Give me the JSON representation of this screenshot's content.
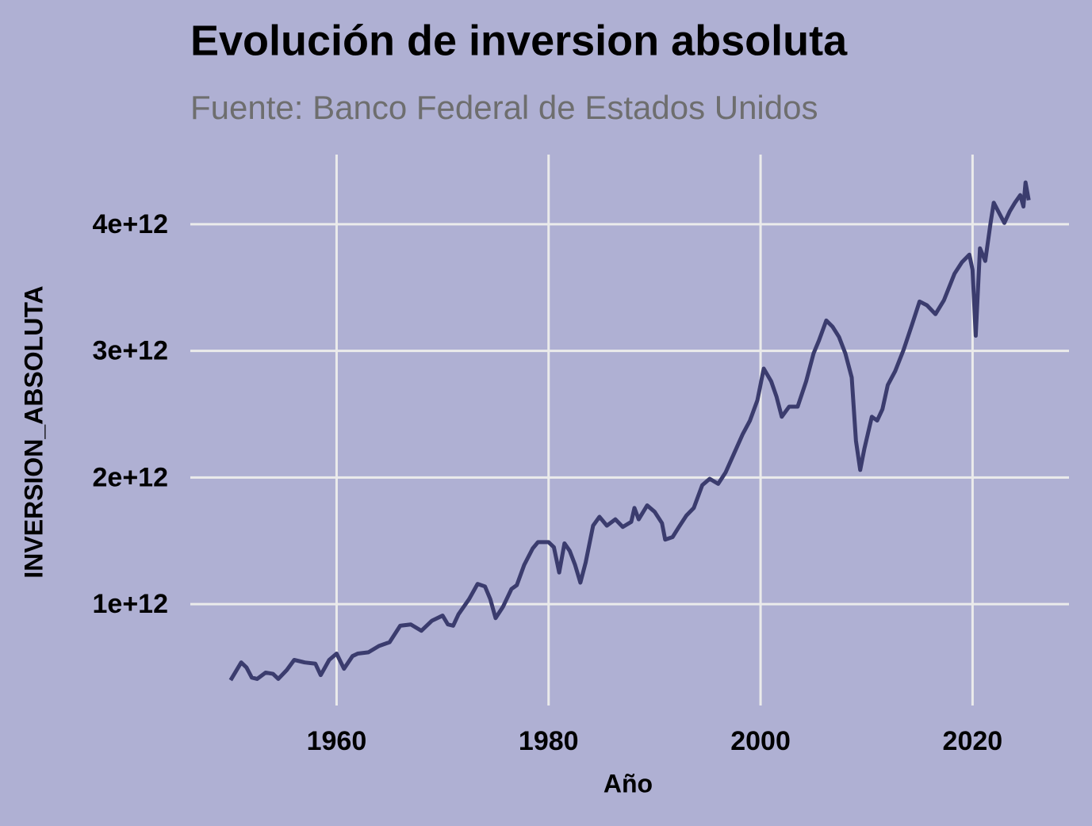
{
  "chart_data": {
    "type": "line",
    "title": "Evolución de inversion absoluta",
    "subtitle": "Fuente: Banco Federal de Estados Unidos",
    "x_label": "Año",
    "y_label": "INVERSION_ABSOLUTA",
    "color": "#3b3c6e",
    "grid": true,
    "xlim": [
      1946.2,
      2029.1
    ],
    "ylim": [
      200000000000.0,
      4550000000000.0
    ],
    "xticks": [
      1960,
      1980,
      2000,
      2020
    ],
    "yticks": [
      {
        "value": 1000000000000.0,
        "label": "1e+12"
      },
      {
        "value": 2000000000000.0,
        "label": "2e+12"
      },
      {
        "value": 3000000000000.0,
        "label": "3e+12"
      },
      {
        "value": 4000000000000.0,
        "label": "4e+12"
      }
    ],
    "x": [
      1950.0,
      1951.0,
      1951.5,
      1952.0,
      1952.5,
      1953.3,
      1954.0,
      1954.5,
      1955.3,
      1956.0,
      1957.0,
      1958.0,
      1958.5,
      1959.3,
      1960.0,
      1960.7,
      1961.5,
      1962.0,
      1963.0,
      1964.0,
      1965.0,
      1966.0,
      1967.0,
      1968.0,
      1969.0,
      1970.0,
      1970.5,
      1971.0,
      1971.5,
      1972.5,
      1973.3,
      1974.0,
      1974.5,
      1975.0,
      1975.7,
      1976.5,
      1977.0,
      1977.7,
      1978.5,
      1979.0,
      1980.0,
      1980.5,
      1981.0,
      1981.5,
      1982.0,
      1982.5,
      1983.0,
      1983.5,
      1984.2,
      1984.8,
      1985.5,
      1986.3,
      1987.0,
      1987.8,
      1988.1,
      1988.5,
      1989.3,
      1990.0,
      1990.7,
      1991.0,
      1991.7,
      1992.3,
      1993.0,
      1993.7,
      1994.5,
      1995.2,
      1996.0,
      1996.7,
      1997.5,
      1998.3,
      1999.0,
      1999.7,
      2000.3,
      2001.0,
      2001.5,
      2002.0,
      2002.7,
      2003.5,
      2004.3,
      2005.0,
      2005.5,
      2006.2,
      2006.8,
      2007.4,
      2008.0,
      2008.6,
      2009.0,
      2009.4,
      2009.8,
      2010.5,
      2011.0,
      2011.5,
      2012.0,
      2012.7,
      2013.5,
      2014.3,
      2015.0,
      2015.7,
      2016.5,
      2017.3,
      2018.3,
      2019.0,
      2019.7,
      2020.0,
      2020.3,
      2020.7,
      2021.2,
      2021.7,
      2022.0,
      2022.5,
      2023.0,
      2023.5,
      2024.0,
      2024.5,
      2024.8,
      2025.0,
      2025.3
    ],
    "values": [
      400000000000.0,
      540000000000.0,
      500000000000.0,
      420000000000.0,
      410000000000.0,
      460000000000.0,
      450000000000.0,
      410000000000.0,
      480000000000.0,
      560000000000.0,
      540000000000.0,
      530000000000.0,
      440000000000.0,
      560000000000.0,
      610000000000.0,
      490000000000.0,
      590000000000.0,
      610000000000.0,
      620000000000.0,
      670000000000.0,
      700000000000.0,
      830000000000.0,
      840000000000.0,
      790000000000.0,
      870000000000.0,
      910000000000.0,
      840000000000.0,
      830000000000.0,
      920000000000.0,
      1040000000000.0,
      1160000000000.0,
      1140000000000.0,
      1040000000000.0,
      890000000000.0,
      980000000000.0,
      1120000000000.0,
      1150000000000.0,
      1310000000000.0,
      1440000000000.0,
      1490000000000.0,
      1490000000000.0,
      1450000000000.0,
      1250000000000.0,
      1480000000000.0,
      1420000000000.0,
      1310000000000.0,
      1170000000000.0,
      1330000000000.0,
      1620000000000.0,
      1690000000000.0,
      1620000000000.0,
      1670000000000.0,
      1610000000000.0,
      1650000000000.0,
      1760000000000.0,
      1670000000000.0,
      1780000000000.0,
      1730000000000.0,
      1640000000000.0,
      1510000000000.0,
      1530000000000.0,
      1610000000000.0,
      1700000000000.0,
      1760000000000.0,
      1940000000000.0,
      1990000000000.0,
      1950000000000.0,
      2040000000000.0,
      2190000000000.0,
      2340000000000.0,
      2450000000000.0,
      2610000000000.0,
      2860000000000.0,
      2760000000000.0,
      2640000000000.0,
      2480000000000.0,
      2560000000000.0,
      2560000000000.0,
      2760000000000.0,
      2980000000000.0,
      3080000000000.0,
      3240000000000.0,
      3190000000000.0,
      3110000000000.0,
      2980000000000.0,
      2790000000000.0,
      2290000000000.0,
      2060000000000.0,
      2230000000000.0,
      2480000000000.0,
      2450000000000.0,
      2540000000000.0,
      2730000000000.0,
      2840000000000.0,
      3010000000000.0,
      3210000000000.0,
      3390000000000.0,
      3360000000000.0,
      3290000000000.0,
      3400000000000.0,
      3610000000000.0,
      3700000000000.0,
      3760000000000.0,
      3640000000000.0,
      3120000000000.0,
      3810000000000.0,
      3710000000000.0,
      4010000000000.0,
      4170000000000.0,
      4090000000000.0,
      4010000000000.0,
      4100000000000.0,
      4170000000000.0,
      4230000000000.0,
      4140000000000.0,
      4330000000000.0,
      4190000000000.0
    ]
  }
}
